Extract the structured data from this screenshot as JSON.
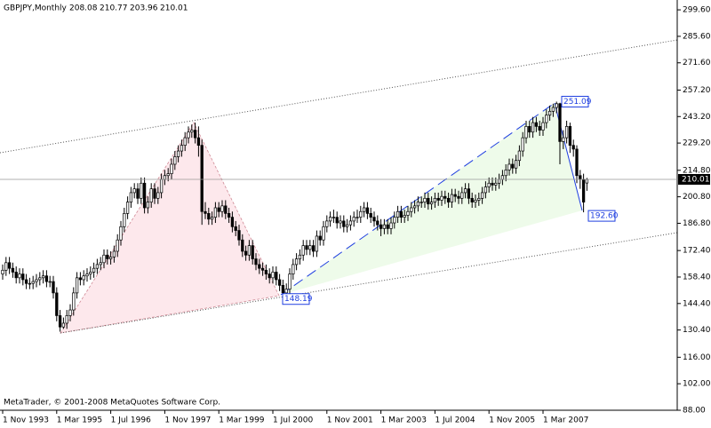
{
  "chart_data": {
    "type": "candlestick",
    "title": "GBPJPY,Monthly",
    "footer": "MetaTrader, © 2001-2008 MetaQuotes Software Corp.",
    "ylim": [
      88,
      304.8
    ],
    "yticks": [
      {
        "value": 299.6,
        "label": "299.60"
      },
      {
        "value": 285.6,
        "label": "285.60"
      },
      {
        "value": 271.6,
        "label": "271.60"
      },
      {
        "value": 257.2,
        "label": "257.20"
      },
      {
        "value": 243.2,
        "label": "243.20"
      },
      {
        "value": 229.2,
        "label": "229.20"
      },
      {
        "value": 214.8,
        "label": "214.80"
      },
      {
        "value": 200.8,
        "label": "200.80"
      },
      {
        "value": 186.8,
        "label": "186.80"
      },
      {
        "value": 172.4,
        "label": "172.40"
      },
      {
        "value": 158.4,
        "label": "158.40"
      },
      {
        "value": 144.4,
        "label": "144.40"
      },
      {
        "value": 130.4,
        "label": "130.40"
      },
      {
        "value": 116,
        "label": "116.00"
      },
      {
        "value": 102,
        "label": "102.00"
      },
      {
        "value": 88,
        "label": "88.00"
      }
    ],
    "annotations": [
      {
        "value": 251.09
      },
      {
        "value": 192.6,
        "label": "192.60"
      },
      {
        "value": 148.19
      }
    ],
    "bull_color": "#ffffff",
    "bear_color": "#000000",
    "outline_color": "#000000",
    "categories": [
      "1 Nov 1993",
      null,
      null,
      null,
      null,
      null,
      null,
      null,
      null,
      null,
      null,
      null,
      null,
      null,
      null,
      null,
      "1 Mar 1995",
      null,
      null,
      null,
      null,
      null,
      null,
      null,
      null,
      null,
      null,
      null,
      null,
      null,
      null,
      null,
      "1 Jul 1996",
      null,
      null,
      null,
      null,
      null,
      null,
      null,
      null,
      null,
      null,
      null,
      null,
      null,
      null,
      null,
      "1 Nov 1997",
      null,
      null,
      null,
      null,
      null,
      null,
      null,
      null,
      null,
      null,
      null,
      null,
      null,
      null,
      null,
      "1 Mar 1999",
      null,
      null,
      null,
      null,
      null,
      null,
      null,
      null,
      null,
      null,
      null,
      null,
      null,
      null,
      null,
      "1 Jul 2000",
      null,
      null,
      null,
      null,
      null,
      null,
      null,
      null,
      null,
      null,
      null,
      null,
      null,
      null,
      null,
      "1 Nov 2001",
      null,
      null,
      null,
      null,
      null,
      null,
      null,
      null,
      null,
      null,
      null,
      null,
      null,
      null,
      null,
      "1 Mar 2003",
      null,
      null,
      null,
      null,
      null,
      null,
      null,
      null,
      null,
      null,
      null,
      null,
      null,
      null,
      null,
      "1 Jul 2004",
      null,
      null,
      null,
      null,
      null,
      null,
      null,
      null,
      null,
      null,
      null,
      null,
      null,
      null,
      null,
      "1 Nov 2005",
      null,
      null,
      null,
      null,
      null,
      null,
      null,
      null,
      null,
      null,
      null,
      null,
      null,
      null,
      null,
      "1 Mar 2007",
      null,
      null,
      null,
      null,
      null,
      null,
      null,
      null,
      null,
      null,
      null,
      null,
      null
    ],
    "ohlc": [
      [
        160,
        165,
        157,
        162
      ],
      [
        162,
        169,
        159,
        166
      ],
      [
        166,
        169,
        160,
        163
      ],
      [
        163,
        166,
        158,
        161
      ],
      [
        161,
        164,
        155,
        158
      ],
      [
        158,
        163,
        155,
        160
      ],
      [
        160,
        163,
        154,
        157
      ],
      [
        157,
        160,
        152,
        155
      ],
      [
        155,
        158,
        152,
        155
      ],
      [
        155,
        159,
        152,
        156
      ],
      [
        156,
        160,
        153,
        157
      ],
      [
        157,
        161,
        154,
        158
      ],
      [
        158,
        162,
        155,
        159
      ],
      [
        159,
        162,
        153,
        156
      ],
      [
        156,
        159,
        153,
        156
      ],
      [
        156,
        159,
        147,
        150
      ],
      [
        150,
        153,
        135,
        138
      ],
      [
        138,
        141,
        129.5,
        132
      ],
      [
        132,
        137,
        131,
        134
      ],
      [
        134,
        141,
        131,
        138
      ],
      [
        138,
        144,
        135,
        141
      ],
      [
        141,
        153,
        138,
        150
      ],
      [
        150,
        161,
        147,
        158
      ],
      [
        158,
        161,
        154,
        157
      ],
      [
        157,
        162,
        154,
        159
      ],
      [
        159,
        163,
        156,
        160
      ],
      [
        160,
        164,
        157,
        161
      ],
      [
        161,
        166,
        158,
        163
      ],
      [
        163,
        168,
        160,
        165
      ],
      [
        165,
        169,
        162,
        166
      ],
      [
        166,
        173,
        163,
        170
      ],
      [
        170,
        173,
        165,
        168
      ],
      [
        168,
        172,
        165,
        169
      ],
      [
        169,
        175,
        166,
        172
      ],
      [
        172,
        181,
        169,
        178
      ],
      [
        178,
        188,
        175,
        185
      ],
      [
        185,
        195,
        182,
        192
      ],
      [
        192,
        201,
        189,
        198
      ],
      [
        198,
        206,
        195,
        203
      ],
      [
        203,
        208,
        200,
        205
      ],
      [
        205,
        208,
        197,
        200
      ],
      [
        200,
        211,
        197,
        208
      ],
      [
        208,
        211,
        192,
        195
      ],
      [
        195,
        201,
        192,
        198
      ],
      [
        198,
        208,
        195,
        205
      ],
      [
        205,
        208,
        197,
        200
      ],
      [
        200,
        206,
        197,
        203
      ],
      [
        203,
        213,
        200,
        210
      ],
      [
        210,
        215,
        207,
        212
      ],
      [
        212,
        216,
        209,
        213
      ],
      [
        213,
        221,
        210,
        218
      ],
      [
        218,
        225,
        215,
        222
      ],
      [
        222,
        228,
        219,
        225
      ],
      [
        225,
        231,
        222,
        228
      ],
      [
        228,
        235,
        225,
        232
      ],
      [
        232,
        238,
        229,
        235
      ],
      [
        235,
        239,
        232,
        236
      ],
      [
        236,
        240,
        229,
        232
      ],
      [
        232,
        238,
        222,
        228
      ],
      [
        228,
        231,
        186,
        193
      ],
      [
        193,
        198,
        189,
        192
      ],
      [
        192,
        195,
        186,
        189
      ],
      [
        189,
        193,
        186,
        190
      ],
      [
        190,
        198,
        187,
        195
      ],
      [
        195,
        198,
        190,
        193
      ],
      [
        193,
        199,
        190,
        196
      ],
      [
        196,
        199,
        189,
        192
      ],
      [
        192,
        195,
        187,
        190
      ],
      [
        190,
        193,
        182,
        185
      ],
      [
        185,
        188,
        180,
        183
      ],
      [
        183,
        186,
        175,
        178
      ],
      [
        178,
        181,
        169,
        172
      ],
      [
        172,
        175,
        167,
        170
      ],
      [
        170,
        178,
        167,
        175
      ],
      [
        175,
        178,
        165,
        168
      ],
      [
        168,
        171,
        162,
        165
      ],
      [
        165,
        168,
        160,
        163
      ],
      [
        163,
        166,
        159,
        162
      ],
      [
        162,
        165,
        157,
        160
      ],
      [
        160,
        163,
        155,
        158
      ],
      [
        158,
        164,
        155,
        161
      ],
      [
        161,
        164,
        154,
        157
      ],
      [
        157,
        160,
        151,
        154
      ],
      [
        154,
        157,
        148.19,
        150
      ],
      [
        150,
        155,
        148.5,
        152
      ],
      [
        152,
        163,
        149,
        160
      ],
      [
        160,
        168,
        157,
        165
      ],
      [
        165,
        171,
        162,
        168
      ],
      [
        168,
        173,
        165,
        170
      ],
      [
        170,
        178,
        167,
        175
      ],
      [
        175,
        178,
        170,
        173
      ],
      [
        173,
        178,
        170,
        175
      ],
      [
        175,
        178,
        169,
        172
      ],
      [
        172,
        183,
        169,
        180
      ],
      [
        180,
        183,
        175,
        178
      ],
      [
        178,
        188,
        175,
        185
      ],
      [
        185,
        191,
        182,
        188
      ],
      [
        188,
        193,
        185,
        190
      ],
      [
        190,
        194,
        187,
        190
      ],
      [
        190,
        193,
        184,
        187
      ],
      [
        187,
        191,
        184,
        188
      ],
      [
        188,
        191,
        182,
        185
      ],
      [
        185,
        189,
        182,
        186
      ],
      [
        186,
        191,
        183,
        188
      ],
      [
        188,
        193,
        185,
        190
      ],
      [
        190,
        194,
        187,
        190
      ],
      [
        190,
        196,
        187,
        193
      ],
      [
        193,
        198,
        190,
        195
      ],
      [
        195,
        198,
        189,
        192
      ],
      [
        192,
        195,
        187,
        190
      ],
      [
        190,
        193,
        185,
        188
      ],
      [
        188,
        191,
        183,
        186
      ],
      [
        186,
        189,
        180,
        184
      ],
      [
        184,
        189,
        181,
        186
      ],
      [
        186,
        189,
        181,
        184
      ],
      [
        184,
        190,
        181,
        187
      ],
      [
        187,
        193,
        184,
        190
      ],
      [
        190,
        196,
        187,
        193
      ],
      [
        193,
        196,
        187,
        190
      ],
      [
        190,
        194,
        187,
        191
      ],
      [
        191,
        196,
        188,
        193
      ],
      [
        193,
        198,
        190,
        195
      ],
      [
        195,
        199,
        192,
        196
      ],
      [
        196,
        201,
        193,
        198
      ],
      [
        198,
        201,
        195,
        198
      ],
      [
        198,
        203,
        195,
        200
      ],
      [
        200,
        203,
        194,
        197
      ],
      [
        197,
        201,
        194,
        198
      ],
      [
        198,
        203,
        195,
        200
      ],
      [
        200,
        203,
        196,
        199
      ],
      [
        199,
        204,
        196,
        201
      ],
      [
        201,
        204,
        197,
        200
      ],
      [
        200,
        203,
        195,
        198
      ],
      [
        198,
        205,
        195,
        202
      ],
      [
        202,
        205,
        198,
        201
      ],
      [
        201,
        204,
        197,
        200
      ],
      [
        200,
        206,
        197,
        203
      ],
      [
        203,
        208,
        200,
        205
      ],
      [
        205,
        208,
        197,
        200
      ],
      [
        200,
        203,
        195,
        198
      ],
      [
        198,
        202,
        195,
        199
      ],
      [
        199,
        203,
        196,
        200
      ],
      [
        200,
        206,
        197,
        203
      ],
      [
        203,
        209,
        200,
        206
      ],
      [
        206,
        211,
        203,
        208
      ],
      [
        208,
        211,
        204,
        207
      ],
      [
        207,
        211,
        204,
        208
      ],
      [
        208,
        213,
        205,
        210
      ],
      [
        210,
        215,
        207,
        212
      ],
      [
        212,
        218,
        209,
        215
      ],
      [
        215,
        221,
        212,
        218
      ],
      [
        218,
        221,
        213,
        216
      ],
      [
        216,
        223,
        213,
        220
      ],
      [
        220,
        228,
        217,
        225
      ],
      [
        225,
        235,
        222,
        232
      ],
      [
        232,
        241,
        229,
        238
      ],
      [
        238,
        241,
        232,
        235
      ],
      [
        235,
        243,
        232,
        240
      ],
      [
        240,
        243,
        235,
        238
      ],
      [
        238,
        241,
        233,
        236
      ],
      [
        236,
        243,
        233,
        240
      ],
      [
        240,
        247,
        237,
        244
      ],
      [
        244,
        249,
        241,
        246
      ],
      [
        246,
        250,
        243,
        248
      ],
      [
        248,
        251.09,
        245,
        250
      ],
      [
        250,
        250.5,
        218,
        230
      ],
      [
        230,
        236,
        226,
        232
      ],
      [
        232,
        241,
        229,
        238
      ],
      [
        238,
        240,
        224,
        228
      ],
      [
        228,
        231,
        222,
        226
      ],
      [
        226,
        228,
        208,
        212
      ],
      [
        212,
        215,
        205,
        210
      ],
      [
        210,
        213,
        192.6,
        198
      ],
      [
        208.08,
        210.77,
        203.96,
        210.01
      ]
    ]
  }
}
